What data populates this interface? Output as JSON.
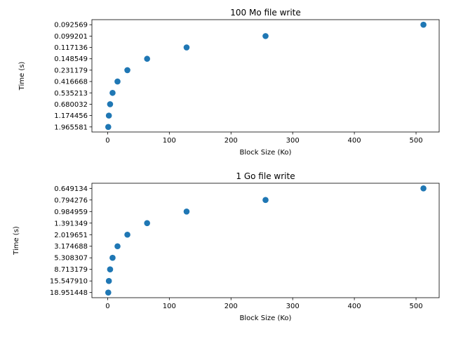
{
  "chart_data": [
    {
      "type": "scatter",
      "title": "100 Mo file write",
      "xlabel": "Block Size (Ko)",
      "ylabel": "Time (s)",
      "color": "#1f77b4",
      "x": [
        1,
        2,
        4,
        8,
        16,
        32,
        64,
        128,
        256,
        512
      ],
      "y": [
        "1.965581",
        "1.174456",
        "0.680032",
        "0.535213",
        "0.416668",
        "0.231179",
        "0.148549",
        "0.117136",
        "0.099201",
        "0.092569"
      ],
      "y_axis": "categorical",
      "xticks": [
        "0",
        "100",
        "200",
        "300",
        "400",
        "500"
      ],
      "xlim": [
        -25.5,
        537.5
      ],
      "grid": false,
      "legend": false
    },
    {
      "type": "scatter",
      "title": "1 Go file write",
      "xlabel": "Block Size (Ko)",
      "ylabel": "Time (s)",
      "color": "#1f77b4",
      "x": [
        1,
        2,
        4,
        8,
        16,
        32,
        64,
        128,
        256,
        512
      ],
      "y": [
        "18.951448",
        "15.547910",
        "8.713179",
        "5.308307",
        "3.174688",
        "2.019651",
        "1.391349",
        "0.984959",
        "0.794276",
        "0.649134"
      ],
      "y_axis": "categorical",
      "xticks": [
        "0",
        "100",
        "200",
        "300",
        "400",
        "500"
      ],
      "xlim": [
        -25.5,
        537.5
      ],
      "grid": false,
      "legend": false
    }
  ]
}
